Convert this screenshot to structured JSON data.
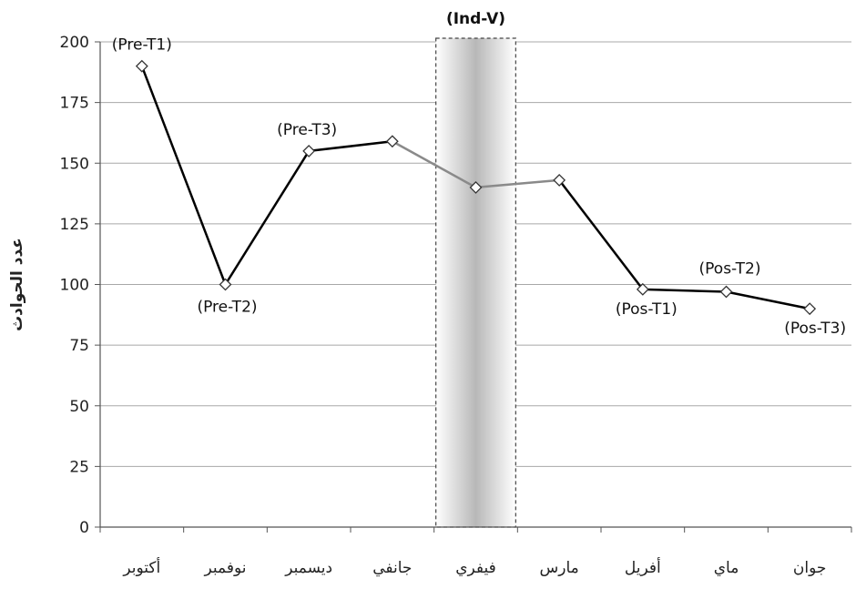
{
  "chart_data": {
    "type": "line",
    "title": "",
    "xlabel": "",
    "ylabel": "عدد الحوادث",
    "ylim": [
      0,
      200
    ],
    "yticks": [
      0,
      25,
      50,
      75,
      100,
      125,
      150,
      175,
      200
    ],
    "grid": true,
    "categories": [
      "أكتوبر",
      "نوفمبر",
      "ديسمبر",
      "جانفي",
      "فيفري",
      "مارس",
      "أفريل",
      "ماي",
      "جوان"
    ],
    "series": [
      {
        "values": [
          190,
          100,
          155,
          159,
          140,
          143,
          98,
          97,
          90
        ],
        "color": "#000000"
      }
    ],
    "point_labels": [
      "(Pre-T1)",
      "(Pre-T2)",
      "(Pre-T3)",
      "",
      "",
      "",
      "(Pos-T1)",
      "(Pos-T2)",
      "(Pos-T3)"
    ],
    "highlight_band": {
      "category": "فيفري",
      "label": "(Ind-V)"
    }
  }
}
